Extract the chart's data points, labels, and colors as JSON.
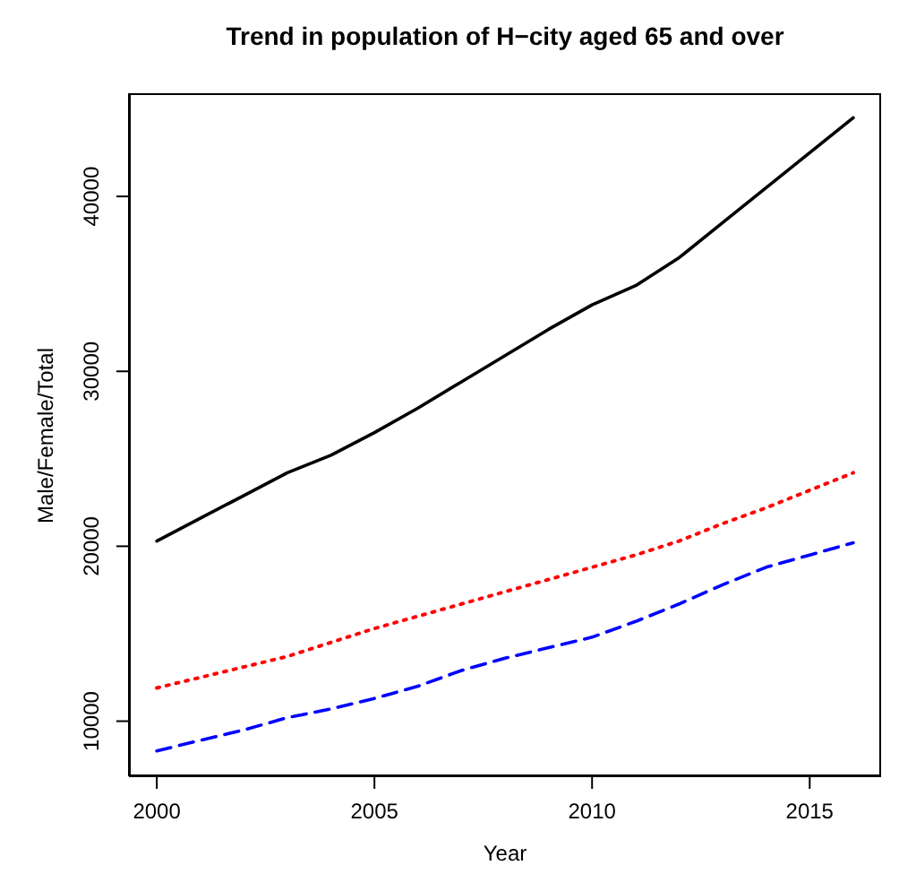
{
  "chart_data": {
    "type": "line",
    "title": "Trend in population of H−city aged 65 and over",
    "xlabel": "Year",
    "ylabel": "Male/Female/Total",
    "x": [
      2000,
      2001,
      2002,
      2003,
      2004,
      2005,
      2006,
      2007,
      2008,
      2009,
      2010,
      2011,
      2012,
      2013,
      2014,
      2015,
      2016
    ],
    "series": [
      {
        "color": "#000000",
        "line_style": "solid",
        "values": [
          20300,
          21600,
          22900,
          24200,
          25200,
          26500,
          27900,
          29400,
          30900,
          32400,
          33800,
          34900,
          36500,
          38500,
          40500,
          42500,
          44500
        ]
      },
      {
        "color": "#ff0000",
        "line_style": "dotted",
        "values": [
          11900,
          12500,
          13100,
          13700,
          14500,
          15300,
          16000,
          16700,
          17400,
          18100,
          18800,
          19500,
          20300,
          21300,
          22200,
          23200,
          24200
        ]
      },
      {
        "color": "#0000ff",
        "line_style": "dashed",
        "values": [
          8300,
          8900,
          9500,
          10200,
          10700,
          11300,
          12000,
          12900,
          13600,
          14200,
          14800,
          15700,
          16700,
          17800,
          18800,
          19500,
          20200
        ]
      }
    ],
    "xlim": [
      1999.36,
      2016.64
    ],
    "xticks": [
      2000,
      2005,
      2010,
      2015
    ],
    "ylim": [
      6850,
      45900
    ],
    "yticks": [
      10000,
      20000,
      30000,
      40000
    ],
    "grid": false,
    "legend": false,
    "marker": "none"
  }
}
